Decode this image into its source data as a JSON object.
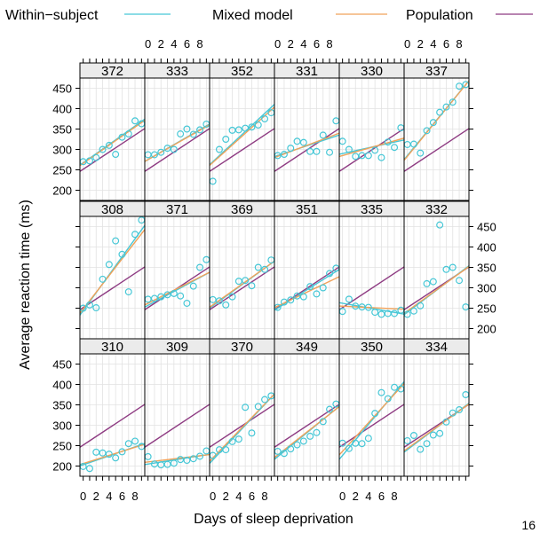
{
  "legend": [
    {
      "name": "Within−subject",
      "color": "#46c7d6"
    },
    {
      "name": "Mixed model",
      "color": "#f0a25a"
    },
    {
      "name": "Population",
      "color": "#8e3b82"
    }
  ],
  "page_number": "16",
  "chart_data": {
    "type": "scatter",
    "layout": "lattice 6 columns x 3 rows, panel strips on top",
    "xlabel": "Days of sleep deprivation",
    "ylabel": "Average reaction time (ms)",
    "xlim": [
      -0.5,
      9.5
    ],
    "ylim": [
      175,
      475
    ],
    "xticks": [
      0,
      2,
      4,
      6,
      8
    ],
    "xtick_labels": [
      "0",
      "2",
      "4",
      "6",
      "8"
    ],
    "yticks": [
      200,
      250,
      300,
      350,
      400,
      450
    ],
    "ytick_labels": [
      "200",
      "250",
      "300",
      "350",
      "400",
      "450"
    ],
    "x": [
      0,
      1,
      2,
      3,
      4,
      5,
      6,
      7,
      8,
      9
    ],
    "grid": true,
    "population": {
      "intercept": 251.4,
      "slope": 10.5
    },
    "rows": [
      [
        {
          "id": "372",
          "values": [
            270,
            272,
            280,
            300,
            310,
            288,
            330,
            338,
            370,
            363
          ],
          "within": {
            "intercept": 267,
            "slope": 11.3
          },
          "mixed": {
            "intercept": 266,
            "slope": 11.1
          }
        },
        {
          "id": "333",
          "values": [
            287,
            287,
            293,
            303,
            300,
            338,
            350,
            337,
            348,
            362
          ],
          "within": {
            "intercept": 275,
            "slope": 9.2
          },
          "mixed": {
            "intercept": 275,
            "slope": 9.0
          }
        },
        {
          "id": "352",
          "values": [
            222,
            300,
            325,
            347,
            348,
            352,
            355,
            360,
            375,
            390
          ],
          "within": {
            "intercept": 270,
            "slope": 14.8
          },
          "mixed": {
            "intercept": 268,
            "slope": 14.3
          }
        },
        {
          "id": "331",
          "values": [
            285,
            288,
            303,
            320,
            317,
            295,
            295,
            335,
            293,
            370
          ],
          "within": {
            "intercept": 285,
            "slope": 5.3
          },
          "mixed": {
            "intercept": 283,
            "slope": 6.0
          }
        },
        {
          "id": "330",
          "values": [
            320,
            300,
            283,
            285,
            285,
            298,
            280,
            318,
            305,
            353
          ],
          "within": {
            "intercept": 290,
            "slope": 3.5
          },
          "mixed": {
            "intercept": 285,
            "slope": 4.5
          }
        },
        {
          "id": "337",
          "values": [
            312,
            313,
            291,
            346,
            366,
            391,
            404,
            416,
            455,
            459
          ],
          "within": {
            "intercept": 285,
            "slope": 19.3
          },
          "mixed": {
            "intercept": 283,
            "slope": 19.5
          }
        }
      ],
      [
        {
          "id": "308",
          "values": [
            250,
            258,
            251,
            321,
            357,
            415,
            382,
            290,
            431,
            466
          ],
          "within": {
            "intercept": 244,
            "slope": 22.0
          },
          "mixed": {
            "intercept": 248,
            "slope": 20.5
          }
        },
        {
          "id": "371",
          "values": [
            272,
            274,
            278,
            283,
            286,
            280,
            262,
            304,
            350,
            369
          ],
          "within": {
            "intercept": 257,
            "slope": 8.5
          },
          "mixed": {
            "intercept": 262,
            "slope": 8.0
          }
        },
        {
          "id": "369",
          "values": [
            271,
            268,
            258,
            278,
            316,
            318,
            305,
            350,
            345,
            368
          ],
          "within": {
            "intercept": 256,
            "slope": 11.5
          },
          "mixed": {
            "intercept": 258,
            "slope": 11.3
          }
        },
        {
          "id": "351",
          "values": [
            252,
            265,
            270,
            280,
            278,
            303,
            285,
            300,
            335,
            348
          ],
          "within": {
            "intercept": 250,
            "slope": 10.0
          },
          "mixed": {
            "intercept": 255,
            "slope": 7.6
          }
        },
        {
          "id": "335",
          "values": [
            242,
            272,
            255,
            253,
            252,
            240,
            235,
            237,
            237,
            245
          ],
          "within": {
            "intercept": 262,
            "slope": -2.8
          },
          "mixed": {
            "intercept": 255,
            "slope": -0.8
          }
        },
        {
          "id": "332",
          "values": [
            235,
            243,
            256,
            310,
            315,
            454,
            345,
            350,
            318,
            253
          ],
          "within": {
            "intercept": 240,
            "slope": 12.0
          },
          "mixed": {
            "intercept": 243,
            "slope": 11.5
          }
        }
      ],
      [
        {
          "id": "310",
          "values": [
            199,
            194,
            234,
            232,
            229,
            220,
            235,
            255,
            261,
            248
          ],
          "within": {
            "intercept": 203,
            "slope": 5.5
          },
          "mixed": {
            "intercept": 206,
            "slope": 5.0
          }
        },
        {
          "id": "309",
          "values": [
            223,
            205,
            203,
            204,
            207,
            216,
            214,
            218,
            224,
            237
          ],
          "within": {
            "intercept": 205,
            "slope": 2.5
          },
          "mixed": {
            "intercept": 210,
            "slope": 1.9
          }
        },
        {
          "id": "370",
          "values": [
            226,
            240,
            240,
            260,
            266,
            344,
            281,
            346,
            363,
            372
          ],
          "within": {
            "intercept": 215,
            "slope": 17.0
          },
          "mixed": {
            "intercept": 220,
            "slope": 16.5
          }
        },
        {
          "id": "349",
          "values": [
            236,
            231,
            242,
            252,
            261,
            273,
            282,
            309,
            339,
            352
          ],
          "within": {
            "intercept": 223,
            "slope": 13.0
          },
          "mixed": {
            "intercept": 227,
            "slope": 12.5
          }
        },
        {
          "id": "350",
          "values": [
            256,
            243,
            256,
            255,
            268,
            329,
            380,
            365,
            393,
            389
          ],
          "within": {
            "intercept": 226,
            "slope": 19.0
          },
          "mixed": {
            "intercept": 236,
            "slope": 17.5
          }
        },
        {
          "id": "334",
          "values": [
            262,
            275,
            241,
            255,
            276,
            280,
            308,
            330,
            338,
            375
          ],
          "within": {
            "intercept": 240,
            "slope": 12.0
          },
          "mixed": {
            "intercept": 243,
            "slope": 11.5
          }
        }
      ]
    ]
  }
}
